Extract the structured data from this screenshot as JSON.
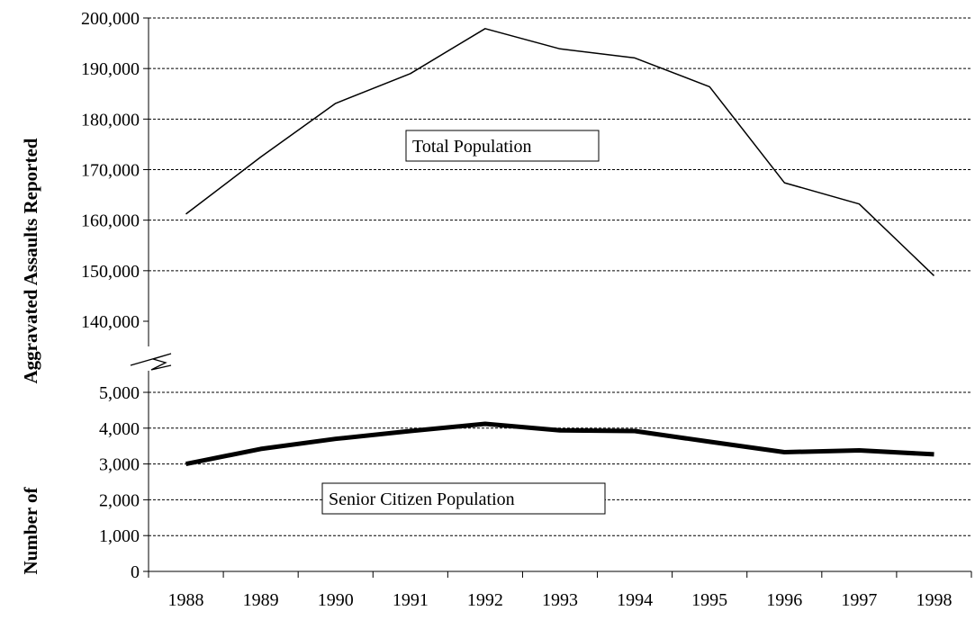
{
  "chart_data": {
    "type": "line",
    "title": "",
    "xlabel": "",
    "ylabel_part1": "Number of",
    "ylabel_part2": "Aggravated Assaults Reported",
    "x": [
      "1988",
      "1989",
      "1990",
      "1991",
      "1992",
      "1993",
      "1994",
      "1995",
      "1996",
      "1997",
      "1998"
    ],
    "y_axis_broken": true,
    "y_upper_range": [
      140000,
      200000
    ],
    "y_lower_range": [
      0,
      5000
    ],
    "y_upper_ticks": [
      "140,000",
      "150,000",
      "160,000",
      "170,000",
      "180,000",
      "190,000",
      "200,000"
    ],
    "y_lower_ticks": [
      "0",
      "1,000",
      "2,000",
      "3,000",
      "4,000",
      "5,000"
    ],
    "grid": true,
    "series": [
      {
        "name": "Total Population",
        "segment": "upper",
        "line": "thin",
        "values": [
          161200,
          172500,
          183100,
          189000,
          197900,
          193900,
          192100,
          186400,
          167400,
          163200,
          149000
        ]
      },
      {
        "name": "Senior Citizen Population",
        "segment": "lower",
        "line": "thick",
        "values": [
          3000,
          3420,
          3700,
          3920,
          4120,
          3940,
          3920,
          3620,
          3330,
          3380,
          3270
        ]
      }
    ]
  }
}
